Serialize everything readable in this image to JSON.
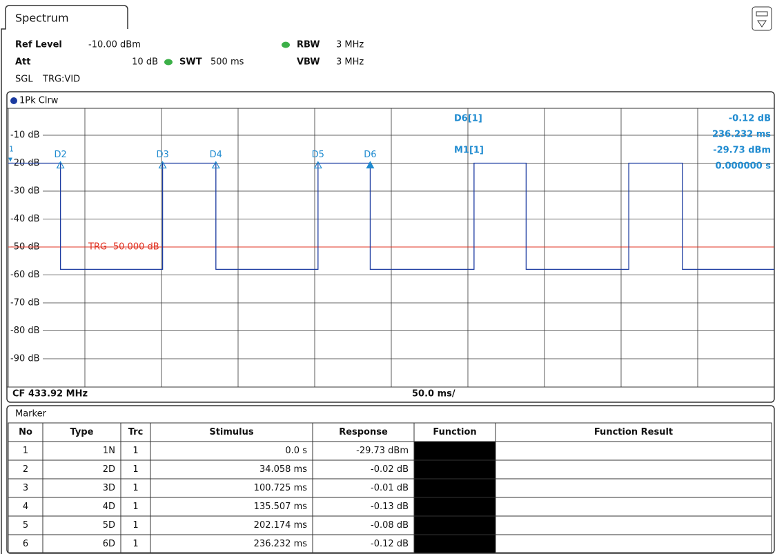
{
  "tab": "Spectrum",
  "header": {
    "ref_level_label": "Ref Level",
    "ref_level": "-10.00 dBm",
    "att_label": "Att",
    "att": "10 dB",
    "swt_label": "SWT",
    "swt": "500 ms",
    "rbw_label": "RBW",
    "rbw": "3 MHz",
    "vbw_label": "VBW",
    "vbw": "3 MHz",
    "mode": "SGL",
    "trigger": "TRG:VID"
  },
  "chart_data": {
    "type": "line",
    "x": [
      0,
      34.058,
      34.058,
      100.725,
      100.725,
      135.507,
      135.507,
      202.174,
      202.174,
      236.232,
      236.232,
      304,
      304,
      338,
      338,
      405,
      405,
      440,
      440,
      500
    ],
    "series": [
      {
        "name": "1Pk Clrw",
        "color": "#1a3aa0",
        "values": [
          -20,
          -20,
          -58,
          -58,
          -20,
          -20,
          -58,
          -58,
          -20,
          -20,
          -58,
          -58,
          -20,
          -20,
          -58,
          -58,
          -20,
          -20,
          -58,
          -58
        ]
      }
    ],
    "xlim": [
      0,
      500
    ],
    "xticks": [
      0,
      50,
      100,
      150,
      200,
      250,
      300,
      350,
      400,
      450,
      500
    ],
    "ylim": [
      -100,
      0
    ],
    "yticks": [
      {
        "value": -10,
        "label": "-10 dB"
      },
      {
        "value": -20,
        "label": "-20 dB"
      },
      {
        "value": -30,
        "label": "-30 dB"
      },
      {
        "value": -40,
        "label": "-40 dB"
      },
      {
        "value": -50,
        "label": "-50 dB"
      },
      {
        "value": -60,
        "label": "-60 dB"
      },
      {
        "value": -70,
        "label": "-70 dB"
      },
      {
        "value": -80,
        "label": "-80 dB"
      },
      {
        "value": -90,
        "label": "-90 dB"
      }
    ],
    "grid": true,
    "trigger": {
      "label": "TRG -50.000 dB",
      "value": -50,
      "color": "#e03020"
    },
    "markers": [
      {
        "label": "1",
        "x": 0,
        "y": -20
      },
      {
        "label": "D2",
        "x": 34.058,
        "y": -20
      },
      {
        "label": "D3",
        "x": 100.725,
        "y": -20
      },
      {
        "label": "D4",
        "x": 135.507,
        "y": -20
      },
      {
        "label": "D5",
        "x": 202.174,
        "y": -20
      },
      {
        "label": "D6",
        "x": 236.232,
        "y": -20
      }
    ],
    "marker_info": [
      {
        "name": "D6[1]",
        "lines": [
          "-0.12 dB",
          "236.232 ms"
        ]
      },
      {
        "name": "M1[1]",
        "lines": [
          "-29.73 dBm",
          "0.000000 s"
        ]
      }
    ],
    "center": "CF 433.92 MHz",
    "span_per_div": "50.0 ms/"
  },
  "marker_table": {
    "title": "Marker",
    "columns": [
      "No",
      "Type",
      "Trc",
      "Stimulus",
      "Response",
      "Function",
      "Function Result"
    ],
    "rows": [
      [
        "1",
        "1N",
        "1",
        "0.0 s",
        "-29.73 dBm"
      ],
      [
        "2",
        "2D",
        "1",
        "34.058 ms",
        "-0.02 dB"
      ],
      [
        "3",
        "3D",
        "1",
        "100.725 ms",
        "-0.01 dB"
      ],
      [
        "4",
        "4D",
        "1",
        "135.507 ms",
        "-0.13 dB"
      ],
      [
        "5",
        "5D",
        "1",
        "202.174 ms",
        "-0.08 dB"
      ],
      [
        "6",
        "6D",
        "1",
        "236.232 ms",
        "-0.12 dB"
      ]
    ]
  }
}
